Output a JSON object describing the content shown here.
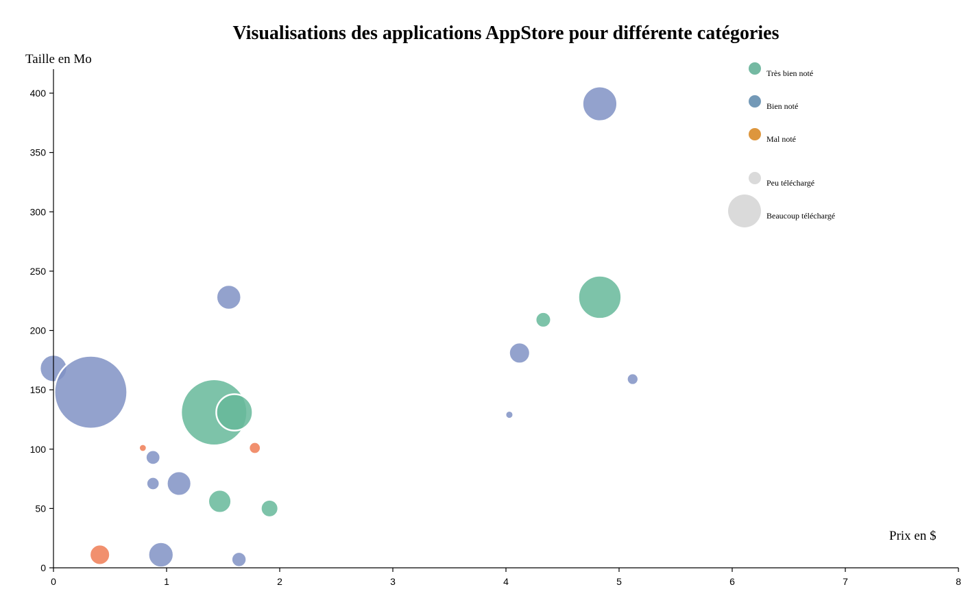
{
  "chart_data": {
    "type": "scatter",
    "title": "Visualisations des applications AppStore pour différente catégories",
    "xlabel": "Prix en $",
    "ylabel": "Taille en Mo",
    "xlim": [
      0,
      8
    ],
    "ylim": [
      0,
      420
    ],
    "xticks": [
      0,
      1,
      2,
      3,
      4,
      5,
      6,
      7,
      8
    ],
    "yticks": [
      0,
      50,
      100,
      150,
      200,
      250,
      300,
      350,
      400
    ],
    "grid": false,
    "legend_position": "top-right",
    "colors": {
      "tres_bien": "#66b89a",
      "bien": "#8092c4",
      "mal": "#ee7c55",
      "legend_tres_bien": "#6db59d",
      "legend_bien": "#6c93b3",
      "legend_mal": "#db9033",
      "legend_size": "#dadada"
    },
    "legend": {
      "colors": [
        {
          "label": "Très bien noté",
          "key": "legend_tres_bien"
        },
        {
          "label": "Bien noté",
          "key": "legend_bien"
        },
        {
          "label": "Mal noté",
          "key": "legend_mal"
        }
      ],
      "sizes": [
        {
          "label": "Peu téléchargé",
          "size": "small"
        },
        {
          "label": "Beaucoup téléchargé",
          "size": "large"
        }
      ]
    },
    "series": [
      {
        "name": "Très bien noté",
        "color_key": "tres_bien",
        "points": [
          {
            "x": 1.42,
            "y": 131,
            "downloads": 3300
          },
          {
            "x": 1.6,
            "y": 131,
            "downloads": 1000
          },
          {
            "x": 4.83,
            "y": 228,
            "downloads": 1400
          },
          {
            "x": 4.33,
            "y": 209,
            "downloads": 180
          },
          {
            "x": 1.47,
            "y": 56,
            "downloads": 400
          },
          {
            "x": 1.91,
            "y": 50,
            "downloads": 230
          }
        ]
      },
      {
        "name": "Bien noté",
        "color_key": "bien",
        "points": [
          {
            "x": 4.83,
            "y": 391,
            "downloads": 910
          },
          {
            "x": 1.55,
            "y": 228,
            "downloads": 460
          },
          {
            "x": 0.0,
            "y": 168,
            "downloads": 560
          },
          {
            "x": 0.33,
            "y": 148,
            "downloads": 4000
          },
          {
            "x": 4.12,
            "y": 181,
            "downloads": 330
          },
          {
            "x": 5.12,
            "y": 159,
            "downloads": 100
          },
          {
            "x": 4.03,
            "y": 129,
            "downloads": 48
          },
          {
            "x": 0.88,
            "y": 93,
            "downloads": 160
          },
          {
            "x": 0.88,
            "y": 71,
            "downloads": 130
          },
          {
            "x": 1.11,
            "y": 71,
            "downloads": 450
          },
          {
            "x": 0.95,
            "y": 11,
            "downloads": 480
          },
          {
            "x": 1.64,
            "y": 7,
            "downloads": 170
          }
        ]
      },
      {
        "name": "Mal noté",
        "color_key": "mal",
        "points": [
          {
            "x": 0.79,
            "y": 101,
            "downloads": 45
          },
          {
            "x": 1.78,
            "y": 101,
            "downloads": 105
          },
          {
            "x": 0.41,
            "y": 11,
            "downloads": 310
          }
        ]
      }
    ]
  }
}
